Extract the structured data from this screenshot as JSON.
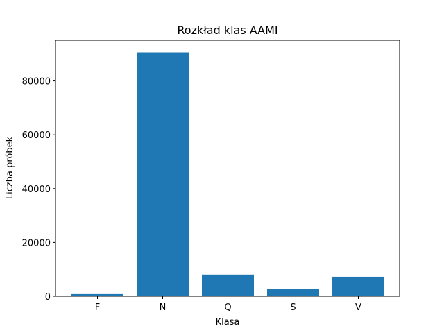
{
  "chart_data": {
    "type": "bar",
    "title": "Rozkład klas AAMI",
    "xlabel": "Klasa",
    "ylabel": "Liczba próbek",
    "categories": [
      "F",
      "N",
      "Q",
      "S",
      "V"
    ],
    "values": [
      802,
      90589,
      8039,
      2779,
      7236
    ],
    "ylim": [
      0,
      95100
    ],
    "yticks": [
      0,
      20000,
      40000,
      60000,
      80000
    ],
    "bar_color": "#1f77b4",
    "grid": false
  }
}
